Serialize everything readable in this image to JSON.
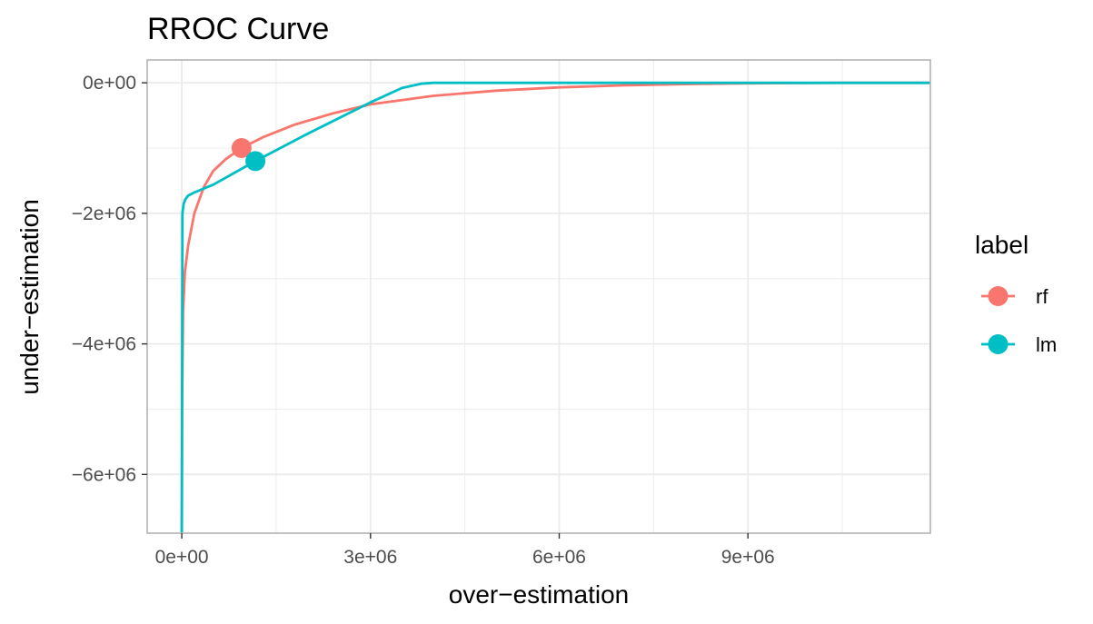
{
  "chart_data": {
    "type": "line",
    "title": "RROC Curve",
    "xlabel": "over−estimation",
    "ylabel": "under−estimation",
    "xlim": [
      -550000,
      11900000
    ],
    "ylim": [
      -6900000,
      350000
    ],
    "x_ticks": [
      {
        "value": 0,
        "label": "0e+00"
      },
      {
        "value": 3000000,
        "label": "3e+06"
      },
      {
        "value": 6000000,
        "label": "6e+06"
      },
      {
        "value": 9000000,
        "label": "9e+06"
      }
    ],
    "y_ticks": [
      {
        "value": 0,
        "label": "0e+00"
      },
      {
        "value": -2000000,
        "label": "−2e+06"
      },
      {
        "value": -4000000,
        "label": "−4e+06"
      },
      {
        "value": -6000000,
        "label": "−6e+06"
      }
    ],
    "grid": true,
    "legend": {
      "title": "label",
      "position": "right"
    },
    "colors": {
      "rf": "#f8766d",
      "lm": "#00bfc4",
      "panel_border": "#b3b3b3",
      "grid": "#ebebeb"
    },
    "series": [
      {
        "name": "rf",
        "x": [
          0,
          5000,
          20000,
          50000,
          100000,
          200000,
          350000,
          500000,
          700000,
          950000,
          1300000,
          1800000,
          2400000,
          3000000,
          4000000,
          5000000,
          6000000,
          7000000,
          8000000,
          9000000,
          10500000,
          11900000
        ],
        "y": [
          -6900000,
          -5000000,
          -3500000,
          -2900000,
          -2500000,
          -2000000,
          -1600000,
          -1350000,
          -1170000,
          -1000000,
          -830000,
          -640000,
          -470000,
          -330000,
          -200000,
          -120000,
          -70000,
          -40000,
          -20000,
          -8000,
          0,
          0
        ],
        "point": {
          "x": 950000,
          "y": -1000000
        }
      },
      {
        "name": "lm",
        "x": [
          0,
          10000,
          30000,
          60000,
          100000,
          200000,
          300000,
          500000,
          1170000,
          2000000,
          3000000,
          3500000,
          3800000,
          4000000,
          4500000,
          6000000,
          9000000,
          11900000
        ],
        "y": [
          -6900000,
          -2000000,
          -1850000,
          -1780000,
          -1730000,
          -1680000,
          -1640000,
          -1560000,
          -1200000,
          -780000,
          -300000,
          -80000,
          -15000,
          0,
          0,
          0,
          0,
          0
        ],
        "point": {
          "x": 1170000,
          "y": -1200000
        }
      }
    ]
  }
}
